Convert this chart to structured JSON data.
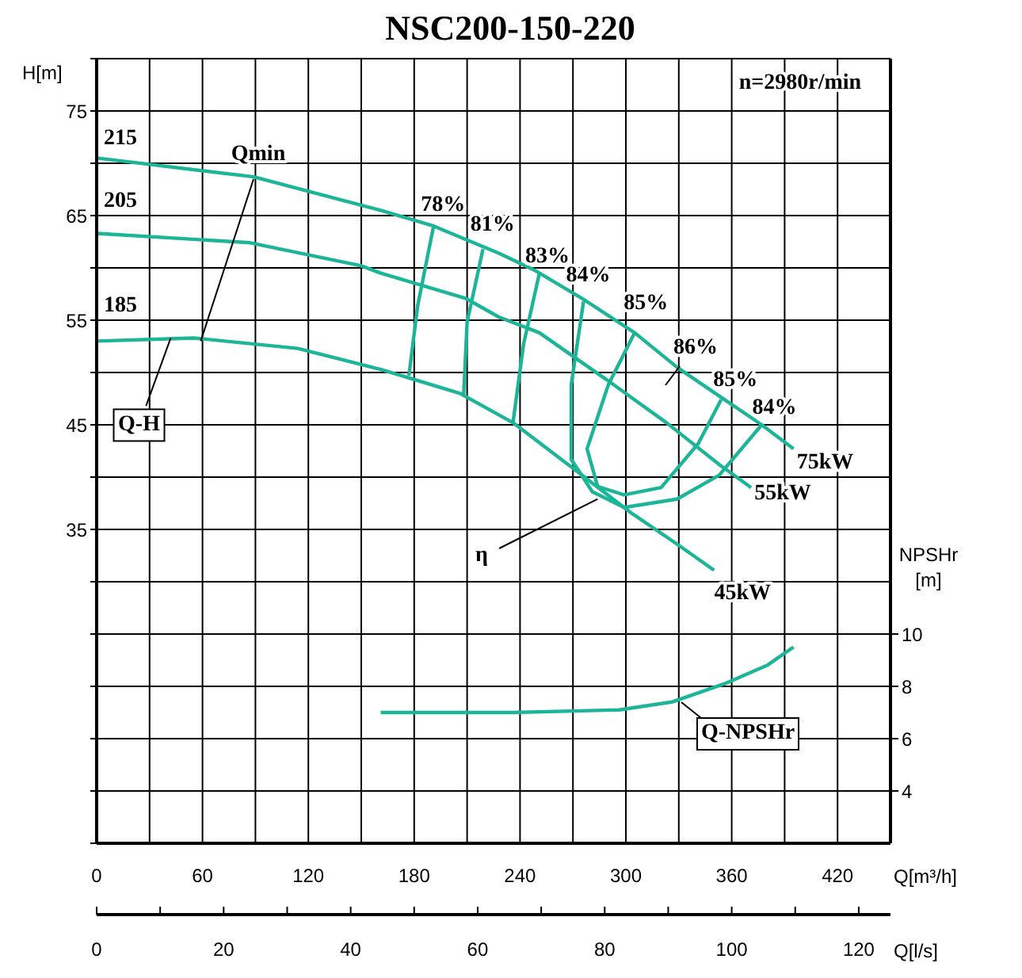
{
  "chart_data": {
    "type": "line",
    "title": "NSC200-150-220",
    "xlabel": "Q[m³/h]",
    "x2label": "Q[l/s]",
    "ylabel": "H[m]",
    "y2label": "NPSHr [m]",
    "xlim": [
      0,
      450
    ],
    "xticks": [
      0,
      {
        "value": 30,
        "label": null
      },
      60,
      {
        "value": 90,
        "label": null
      },
      120,
      {
        "value": 150,
        "label": null
      },
      180,
      {
        "value": 210,
        "label": null
      },
      240,
      {
        "value": 270,
        "label": null
      },
      300,
      {
        "value": 330,
        "label": null
      },
      360,
      {
        "value": 390,
        "label": null
      },
      420,
      {
        "value": 450,
        "label": null
      }
    ],
    "x2lim": [
      0,
      125
    ],
    "x2ticks": [
      0,
      {
        "value": 10,
        "label": null
      },
      20,
      {
        "value": 30,
        "label": null
      },
      40,
      {
        "value": 50,
        "label": null
      },
      60,
      {
        "value": 70,
        "label": null
      },
      80,
      {
        "value": 90,
        "label": null
      },
      100,
      {
        "value": 110,
        "label": null
      },
      120
    ],
    "ylim": [
      5,
      80
    ],
    "yticks": [
      {
        "value": 5,
        "label": null
      },
      {
        "value": 10,
        "label": null
      },
      {
        "value": 15,
        "label": null
      },
      {
        "value": 20,
        "label": null
      },
      {
        "value": 25,
        "label": null
      },
      {
        "value": 30,
        "label": null
      },
      35,
      {
        "value": 40,
        "label": null
      },
      45,
      {
        "value": 50,
        "label": null
      },
      55,
      {
        "value": 60,
        "label": null
      },
      65,
      {
        "value": 70,
        "label": null
      },
      75,
      {
        "value": 80,
        "label": null
      }
    ],
    "y2lim": [
      2,
      32
    ],
    "y2ticks": [
      4,
      6,
      8,
      10
    ],
    "grid": true,
    "marker": "none",
    "line_style": "solid",
    "series": [
      {
        "color": "#1db598",
        "x": [
          0,
          89,
          161,
          191,
          228,
          248,
          275,
          305,
          329,
          356,
          377,
          395
        ],
        "values": [
          70.5,
          68.7,
          65.5,
          64,
          61.4,
          59.8,
          57.1,
          53.8,
          50.5,
          47.4,
          45,
          42.7
        ]
      },
      {
        "color": "#1db598",
        "x": [
          0,
          87,
          150,
          161,
          209,
          228,
          251,
          290,
          323,
          353,
          371
        ],
        "values": [
          63.3,
          62.4,
          60.2,
          59.5,
          57.1,
          55.3,
          53.8,
          49.2,
          45.2,
          41.2,
          39
        ]
      },
      {
        "color": "#1db598",
        "x": [
          0,
          55,
          114,
          161,
          206,
          236,
          275,
          302,
          329,
          350
        ],
        "values": [
          53,
          53.3,
          52.3,
          50.3,
          48,
          45.2,
          40.2,
          36.7,
          33.6,
          31.1
        ]
      },
      {
        "color": "#1db598",
        "x": [
          191,
          182,
          177
        ],
        "values": [
          64,
          56.4,
          49.7
        ]
      },
      {
        "color": "#1db598",
        "x": [
          219,
          210,
          208
        ],
        "values": [
          61.8,
          54.8,
          47.7
        ]
      },
      {
        "color": "#1db598",
        "x": [
          251,
          242,
          236
        ],
        "values": [
          59.5,
          52.7,
          45.2
        ]
      },
      {
        "color": "#1db598",
        "x": [
          276,
          269,
          269,
          281,
          299,
          329,
          353,
          377
        ],
        "values": [
          56.8,
          48.8,
          41.7,
          38.6,
          37.1,
          37.9,
          40.2,
          45
        ]
      },
      {
        "color": "#1db598",
        "x": [
          305,
          290,
          278,
          284,
          299,
          320,
          341,
          354
        ],
        "values": [
          53.8,
          48.8,
          42.7,
          39.1,
          38.3,
          39,
          43.2,
          47.4
        ]
      },
      {
        "color": "#1db598",
        "axis": "y2",
        "x": [
          161,
          236,
          296,
          326,
          356,
          380,
          395
        ],
        "values": [
          7,
          7,
          7.1,
          7.4,
          8.1,
          8.8,
          9.5
        ]
      }
    ],
    "annotations": [
      "n=2980r/min",
      {
        "text": "215",
        "x": 0,
        "y": 70.5
      },
      {
        "text": "205",
        "x": 0,
        "y": 63.3
      },
      {
        "text": "185",
        "x": 0,
        "y": 53
      },
      {
        "text": "78%",
        "x": 191,
        "y": 64
      },
      {
        "text": "81%",
        "x": 219,
        "y": 61.8
      },
      {
        "text": "83%",
        "x": 251,
        "y": 59.5
      },
      {
        "text": "84%",
        "x": 276,
        "y": 56.8
      },
      {
        "text": "85%",
        "x": 305,
        "y": 53.8
      },
      "86%",
      {
        "text": "85%",
        "x": 354,
        "y": 47.4
      },
      {
        "text": "84%",
        "x": 377,
        "y": 45
      },
      {
        "text": "75kW",
        "x": 395,
        "y": 42.7
      },
      {
        "text": "55kW",
        "x": 371,
        "y": 39
      },
      {
        "text": "45kW",
        "x": 350,
        "y": 31.1
      },
      {
        "text": "Qmin",
        "x": 59,
        "y": 53
      },
      {
        "text": "Q-H",
        "x": 42,
        "y": 53.3
      },
      {
        "text": "η",
        "x": 284,
        "y": 37.9
      },
      "Q-NPSHr"
    ]
  }
}
